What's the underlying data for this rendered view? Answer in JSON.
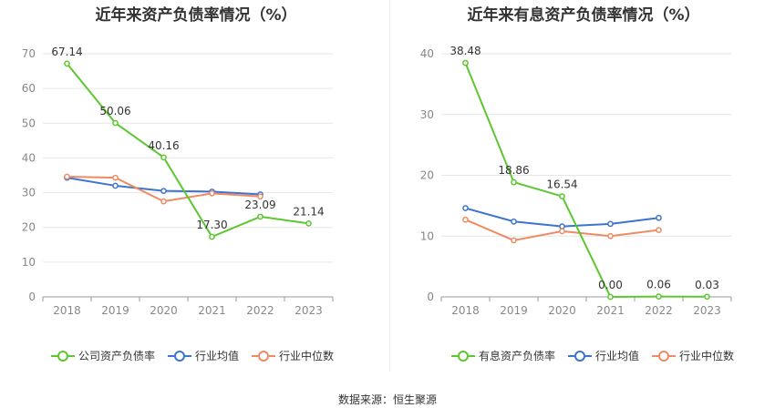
{
  "titles": {
    "left": "近年来资产负债率情况（%）",
    "right": "近年来有息资产负债率情况（%）"
  },
  "source": "数据来源：恒生聚源",
  "chart_data": [
    {
      "type": "line",
      "title": "近年来资产负债率情况（%）",
      "categories": [
        "2018",
        "2019",
        "2020",
        "2021",
        "2022",
        "2023"
      ],
      "ylim": [
        0,
        70
      ],
      "yticks": [
        0,
        10,
        20,
        30,
        40,
        50,
        60,
        70
      ],
      "grid": true,
      "legend_position": "bottom",
      "series": [
        {
          "name": "公司资产负债率",
          "color": "#5cc72e",
          "values": [
            67.14,
            50.06,
            40.16,
            17.3,
            23.09,
            21.14
          ],
          "labels": [
            "67.14",
            "50.06",
            "40.16",
            "17.30",
            "23.09",
            "21.14"
          ],
          "show_labels": true
        },
        {
          "name": "行业均值",
          "color": "#3d73d1",
          "values": [
            34.3,
            32.0,
            30.5,
            30.3,
            29.5,
            null
          ],
          "show_labels": false
        },
        {
          "name": "行业中位数",
          "color": "#ef8a62",
          "values": [
            34.6,
            34.3,
            27.5,
            29.8,
            28.9,
            null
          ],
          "show_labels": false
        }
      ]
    },
    {
      "type": "line",
      "title": "近年来有息资产负债率情况（%）",
      "categories": [
        "2018",
        "2019",
        "2020",
        "2021",
        "2022",
        "2023"
      ],
      "ylim": [
        0,
        40
      ],
      "yticks": [
        0,
        10,
        20,
        30,
        40
      ],
      "grid": true,
      "legend_position": "bottom",
      "series": [
        {
          "name": "有息资产负债率",
          "color": "#5cc72e",
          "values": [
            38.48,
            18.86,
            16.54,
            0.0,
            0.06,
            0.03
          ],
          "labels": [
            "38.48",
            "18.86",
            "16.54",
            "0.00",
            "0.06",
            "0.03"
          ],
          "show_labels": true
        },
        {
          "name": "行业均值",
          "color": "#3d73d1",
          "values": [
            14.6,
            12.4,
            11.6,
            12.0,
            13.0,
            null
          ],
          "show_labels": false
        },
        {
          "name": "行业中位数",
          "color": "#ef8a62",
          "values": [
            12.7,
            9.3,
            10.8,
            10.0,
            11.0,
            null
          ],
          "show_labels": false
        }
      ]
    }
  ]
}
